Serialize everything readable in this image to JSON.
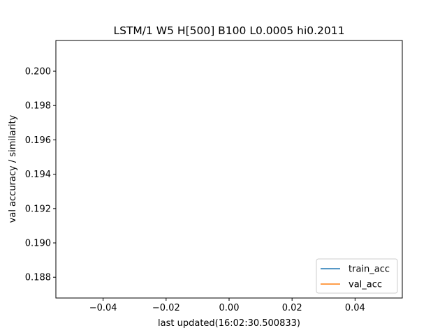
{
  "chart_data": {
    "type": "line",
    "title": "LSTM/1 W5 H[500] B100 L0.0005 hi0.2011",
    "xlabel": "last updated(16:02:30.500833)",
    "ylabel": "val accuracy / similarity",
    "xlim": [
      -0.055,
      0.055
    ],
    "ylim": [
      0.18679,
      0.20179
    ],
    "x_ticks": [
      -0.04,
      -0.02,
      0.0,
      0.02,
      0.04
    ],
    "x_tick_labels": [
      "−0.04",
      "−0.02",
      "0.00",
      "0.02",
      "0.04"
    ],
    "y_ticks": [
      0.188,
      0.19,
      0.192,
      0.194,
      0.196,
      0.198,
      0.2
    ],
    "y_tick_labels": [
      "0.188",
      "0.190",
      "0.192",
      "0.194",
      "0.196",
      "0.198",
      "0.200"
    ],
    "grid": false,
    "legend_position": "lower right",
    "series": [
      {
        "name": "train_acc",
        "color": "#1f77b4",
        "x": [],
        "y": []
      },
      {
        "name": "val_acc",
        "color": "#ff7f0e",
        "x": [],
        "y": []
      }
    ]
  }
}
